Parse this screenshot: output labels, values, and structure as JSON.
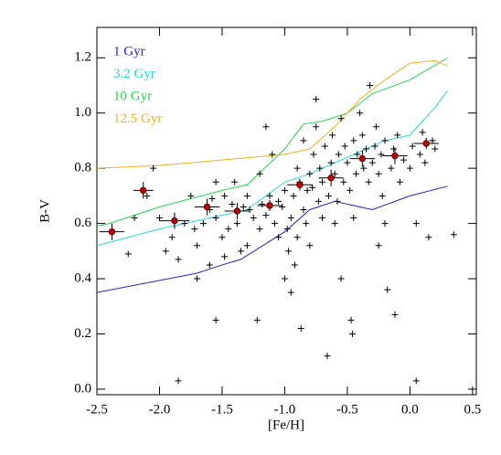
{
  "chart_data": {
    "type": "scatter",
    "x_label": "[Fe/H]",
    "y_label": "B-V",
    "xlim": [
      -2.5,
      0.53
    ],
    "ylim": [
      -0.02,
      1.31
    ],
    "xticks": [
      {
        "value": -2.5,
        "label": "-2.5"
      },
      {
        "value": -2,
        "label": "-2.0"
      },
      {
        "value": -1.5,
        "label": "-1.5"
      },
      {
        "value": -1,
        "label": "-1.0"
      },
      {
        "value": -0.5,
        "label": "-0.5"
      },
      {
        "value": 0,
        "label": "0.0"
      },
      0.5
    ],
    "yticks": [
      {
        "value": 0,
        "label": "0.0"
      },
      0.2,
      0.4,
      0.6,
      0.8,
      {
        "value": 1,
        "label": "1.0"
      },
      1.2
    ],
    "legend": "upper left",
    "series": [
      {
        "name": "1 Gyr",
        "type": "line",
        "color": "#2a1fd0",
        "x": [
          -2.5,
          -1.7,
          -1.5,
          -1.35,
          -1.0,
          -0.8,
          -0.6,
          -0.5,
          -0.3,
          0.0,
          0.3
        ],
        "values": [
          0.35,
          0.42,
          0.45,
          0.47,
          0.57,
          0.65,
          0.68,
          0.67,
          0.65,
          0.7,
          0.735
        ]
      },
      {
        "name": "3.2 Gyr",
        "type": "line",
        "color": "#22d8e0",
        "x": [
          -2.5,
          -2.0,
          -1.5,
          -1.3,
          -1.0,
          -0.8,
          -0.5,
          -0.2,
          0.0,
          0.2,
          0.3
        ],
        "values": [
          0.52,
          0.58,
          0.63,
          0.65,
          0.75,
          0.78,
          0.84,
          0.9,
          0.92,
          1.02,
          1.08
        ]
      },
      {
        "name": "10 Gyr",
        "type": "line",
        "color": "#22d84a",
        "x": [
          -2.5,
          -2.4,
          -2.0,
          -1.5,
          -1.3,
          -1.0,
          -0.85,
          -0.7,
          -0.5,
          -0.3,
          0.0,
          0.3
        ],
        "values": [
          0.59,
          0.6,
          0.66,
          0.72,
          0.74,
          0.87,
          0.96,
          0.97,
          1.0,
          1.07,
          1.12,
          1.2
        ]
      },
      {
        "name": "12.5 Gyr",
        "type": "line",
        "color": "#f2b21c",
        "x": [
          -2.5,
          -2.0,
          -1.5,
          -1.0,
          -0.8,
          -0.6,
          -0.4,
          -0.2,
          0.0,
          0.2,
          0.3
        ],
        "values": [
          0.8,
          0.81,
          0.83,
          0.85,
          0.87,
          0.95,
          1.05,
          1.12,
          1.18,
          1.19,
          1.17
        ]
      },
      {
        "type": "scatter",
        "color": "#000000",
        "x": [
          -2.25,
          -2.1,
          -2.05,
          -1.95,
          -1.9,
          -1.85,
          -1.85,
          -1.8,
          -1.75,
          -1.72,
          -1.7,
          -1.65,
          -1.6,
          -1.58,
          -1.55,
          -1.55,
          -1.5,
          -1.48,
          -1.45,
          -1.42,
          -1.4,
          -1.38,
          -1.35,
          -1.33,
          -1.3,
          -1.28,
          -1.25,
          -1.22,
          -1.2,
          -1.2,
          -1.18,
          -1.15,
          -1.12,
          -1.1,
          -1.08,
          -1.05,
          -1.05,
          -1.02,
          -1.0,
          -0.98,
          -0.97,
          -0.95,
          -0.93,
          -0.92,
          -0.9,
          -0.9,
          -0.88,
          -0.87,
          -0.85,
          -0.85,
          -0.83,
          -0.82,
          -0.8,
          -0.8,
          -0.78,
          -0.77,
          -0.75,
          -0.75,
          -0.73,
          -0.72,
          -0.7,
          -0.7,
          -0.68,
          -0.66,
          -0.65,
          -0.63,
          -0.62,
          -0.6,
          -0.58,
          -0.57,
          -0.55,
          -0.55,
          -0.53,
          -0.52,
          -0.5,
          -0.48,
          -0.47,
          -0.46,
          -0.45,
          -0.45,
          -0.43,
          -0.42,
          -0.4,
          -0.38,
          -0.37,
          -0.35,
          -0.33,
          -0.32,
          -0.3,
          -0.28,
          -0.27,
          -0.25,
          -0.23,
          -0.22,
          -0.2,
          -0.18,
          -0.15,
          -0.13,
          -0.12,
          -0.1,
          -0.08,
          -0.05,
          0.0,
          0.02,
          0.05,
          0.05,
          0.08,
          0.1,
          0.12,
          0.15,
          0.18,
          0.2,
          0.35,
          -2.0,
          -1.7,
          -1.6,
          -1.48,
          -2.2,
          -1.15,
          -1.0,
          -0.95,
          -0.6,
          -1.3,
          -1.55,
          -0.25,
          -0.2
        ],
        "values": [
          0.49,
          0.7,
          0.8,
          0.5,
          0.55,
          0.03,
          0.47,
          0.6,
          0.7,
          0.58,
          0.52,
          0.6,
          0.65,
          0.69,
          0.25,
          0.62,
          0.55,
          0.7,
          0.58,
          0.67,
          0.75,
          0.6,
          0.5,
          0.66,
          0.7,
          0.65,
          0.62,
          0.25,
          0.78,
          0.58,
          0.67,
          0.63,
          0.7,
          0.85,
          0.6,
          0.55,
          0.68,
          0.66,
          0.72,
          0.58,
          0.5,
          0.62,
          0.7,
          0.45,
          0.8,
          0.55,
          0.75,
          0.22,
          0.9,
          0.65,
          0.6,
          0.72,
          0.78,
          0.52,
          0.73,
          0.85,
          0.95,
          1.05,
          0.68,
          0.8,
          0.75,
          0.62,
          0.88,
          0.12,
          0.7,
          0.82,
          0.92,
          0.78,
          0.68,
          0.85,
          0.98,
          0.4,
          0.75,
          0.88,
          0.82,
          0.72,
          0.25,
          0.2,
          0.9,
          0.62,
          0.78,
          0.85,
          1.0,
          0.92,
          0.8,
          0.87,
          0.75,
          1.1,
          0.82,
          0.88,
          0.95,
          0.78,
          0.85,
          0.7,
          0.9,
          0.36,
          0.8,
          0.87,
          0.27,
          0.92,
          0.75,
          0.83,
          0.8,
          0.88,
          0.6,
          0.03,
          0.85,
          0.93,
          0.82,
          0.55,
          0.9,
          0.87,
          0.56,
          0.62,
          0.4,
          0.45,
          0.48,
          0.62,
          0.95,
          0.4,
          0.35,
          0.6,
          0.52,
          0.75,
          0.52,
          0.6
        ]
      },
      {
        "type": "errorbar",
        "color": "#c00000",
        "x": [
          -2.38,
          -2.13,
          -1.88,
          -1.62,
          -1.38,
          -1.12,
          -0.88,
          -0.63,
          -0.38,
          -0.12,
          0.13
        ],
        "values": [
          0.57,
          0.72,
          0.61,
          0.66,
          0.645,
          0.665,
          0.74,
          0.765,
          0.835,
          0.845,
          0.89
        ],
        "xerr": [
          0.1,
          0.08,
          0.12,
          0.1,
          0.1,
          0.1,
          0.1,
          0.1,
          0.1,
          0.1,
          0.1
        ],
        "yerr": [
          0.03,
          0.03,
          0.03,
          0.03,
          0.03,
          0.02,
          0.02,
          0.03,
          0.03,
          0.03,
          0.02
        ]
      }
    ]
  }
}
